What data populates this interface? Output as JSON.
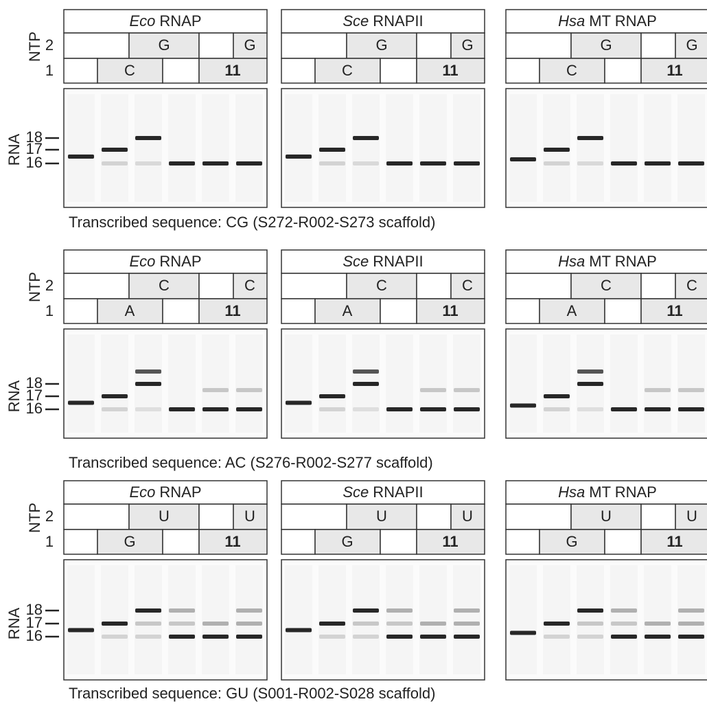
{
  "rows": [
    {
      "ntp_label": "NTP",
      "ntp_rows": [
        "2",
        "1"
      ],
      "rna_label": "RNA",
      "markers": [
        "18",
        "17",
        "16"
      ],
      "panels": [
        {
          "species": "Eco",
          "enzyme": "RNAP",
          "ntp2": [
            "G",
            "G"
          ],
          "ntp1": [
            "C",
            "11"
          ]
        },
        {
          "species": "Sce",
          "enzyme": "RNAPII",
          "ntp2": [
            "G",
            "G"
          ],
          "ntp1": [
            "C",
            "11"
          ]
        },
        {
          "species": "Hsa",
          "enzyme": "MT RNAP",
          "ntp2": [
            "G",
            "G"
          ],
          "ntp1": [
            "C",
            "11"
          ]
        }
      ],
      "caption": "Transcribed sequence: CG (S272-R002-S273 scaffold)"
    },
    {
      "ntp_label": "NTP",
      "ntp_rows": [
        "2",
        "1"
      ],
      "rna_label": "RNA",
      "markers": [
        "18",
        "17",
        "16"
      ],
      "panels": [
        {
          "species": "Eco",
          "enzyme": "RNAP",
          "ntp2": [
            "C",
            "C"
          ],
          "ntp1": [
            "A",
            "11"
          ]
        },
        {
          "species": "Sce",
          "enzyme": "RNAPII",
          "ntp2": [
            "C",
            "C"
          ],
          "ntp1": [
            "A",
            "11"
          ]
        },
        {
          "species": "Hsa",
          "enzyme": "MT RNAP",
          "ntp2": [
            "C",
            "C"
          ],
          "ntp1": [
            "A",
            "11"
          ]
        }
      ],
      "caption": "Transcribed sequence: AC (S276-R002-S277 scaffold)"
    },
    {
      "ntp_label": "NTP",
      "ntp_rows": [
        "2",
        "1"
      ],
      "rna_label": "RNA",
      "markers": [
        "18",
        "17",
        "16"
      ],
      "panels": [
        {
          "species": "Eco",
          "enzyme": "RNAP",
          "ntp2": [
            "U",
            "U"
          ],
          "ntp1": [
            "G",
            "11"
          ]
        },
        {
          "species": "Sce",
          "enzyme": "RNAPII",
          "ntp2": [
            "U",
            "U"
          ],
          "ntp1": [
            "G",
            "11"
          ]
        },
        {
          "species": "Hsa",
          "enzyme": "MT RNAP",
          "ntp2": [
            "U",
            "U"
          ],
          "ntp1": [
            "G",
            "11"
          ]
        }
      ],
      "caption": "Transcribed sequence: GU (S001-R002-S028 scaffold)"
    }
  ]
}
